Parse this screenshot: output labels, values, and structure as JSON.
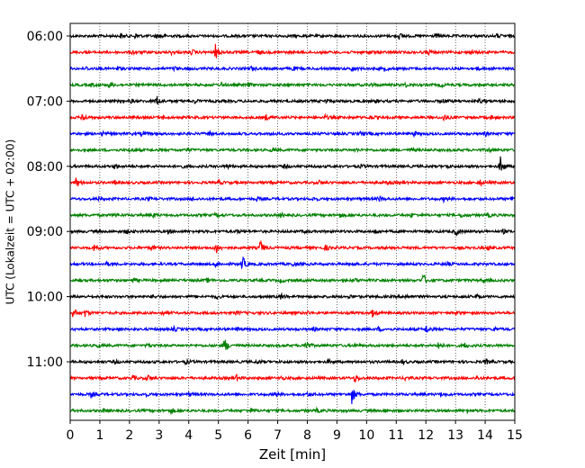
{
  "chart_data": {
    "type": "line",
    "title": "",
    "xlabel": "Zeit  [min]",
    "ylabel": "UTC (Lokalzeit = UTC + 02:00)",
    "xlim": [
      0,
      15
    ],
    "x_ticks": [
      0,
      1,
      2,
      3,
      4,
      5,
      6,
      7,
      8,
      9,
      10,
      11,
      12,
      13,
      14,
      15
    ],
    "x_tick_labels": [
      "0",
      "1",
      "2",
      "3",
      "4",
      "5",
      "6",
      "7",
      "8",
      "9",
      "10",
      "11",
      "12",
      "13",
      "14",
      "15"
    ],
    "y_tick_labels": [
      "06:00",
      "07:00",
      "08:00",
      "09:00",
      "10:00",
      "11:00"
    ],
    "y_tick_rows": [
      0,
      4,
      8,
      12,
      16,
      20
    ],
    "vertical_grid": true,
    "grid_style": "dotted",
    "color_cycle": [
      "#000000",
      "#ff0000",
      "#0000ff",
      "#008000"
    ],
    "row_minutes": 15,
    "traces": [
      {
        "start": "06:00",
        "color": "#000000",
        "events": [
          [
            1.7,
            2
          ],
          [
            2.2,
            3
          ],
          [
            2.9,
            2
          ],
          [
            3.1,
            2
          ],
          [
            11.1,
            3
          ],
          [
            12.3,
            2
          ],
          [
            14.4,
            2
          ]
        ]
      },
      {
        "start": "06:15",
        "color": "#ff0000",
        "events": [
          [
            2.1,
            2
          ],
          [
            3.4,
            2
          ],
          [
            4.1,
            3
          ],
          [
            4.9,
            8
          ],
          [
            6.3,
            2
          ],
          [
            10.1,
            2
          ],
          [
            12.1,
            2
          ],
          [
            13.5,
            2
          ]
        ]
      },
      {
        "start": "06:30",
        "color": "#0000ff",
        "events": [
          [
            0.5,
            2
          ],
          [
            1.6,
            2
          ],
          [
            3.5,
            2
          ],
          [
            6.1,
            2
          ],
          [
            7.5,
            2
          ],
          [
            9.5,
            4
          ],
          [
            10.6,
            2
          ],
          [
            13.7,
            2
          ]
        ]
      },
      {
        "start": "06:45",
        "color": "#008000",
        "events": [
          [
            0.7,
            2
          ],
          [
            1.3,
            3
          ],
          [
            5.1,
            2
          ],
          [
            6.0,
            2
          ],
          [
            10.1,
            2
          ],
          [
            11.3,
            2
          ],
          [
            12.5,
            2
          ]
        ]
      },
      {
        "start": "07:00",
        "color": "#000000",
        "events": [
          [
            2.0,
            2
          ],
          [
            2.9,
            7
          ],
          [
            4.2,
            2
          ],
          [
            8.6,
            2
          ],
          [
            10.3,
            2
          ],
          [
            12.6,
            2
          ],
          [
            13.8,
            2
          ]
        ]
      },
      {
        "start": "07:15",
        "color": "#ff0000",
        "events": [
          [
            0.4,
            5
          ],
          [
            3.1,
            2
          ],
          [
            6.6,
            3
          ],
          [
            8.6,
            2
          ],
          [
            10.1,
            2
          ],
          [
            12.6,
            4
          ],
          [
            14.2,
            2
          ]
        ]
      },
      {
        "start": "07:30",
        "color": "#0000ff",
        "events": [
          [
            1.1,
            2
          ],
          [
            2.4,
            2
          ],
          [
            4.7,
            2
          ],
          [
            6.8,
            2
          ],
          [
            9.8,
            2
          ],
          [
            11.6,
            2
          ],
          [
            14.0,
            2
          ]
        ]
      },
      {
        "start": "07:45",
        "color": "#008000",
        "events": [
          [
            2.0,
            2
          ],
          [
            3.9,
            2
          ],
          [
            6.8,
            2
          ],
          [
            9.6,
            2
          ],
          [
            11.5,
            2
          ],
          [
            14.1,
            2
          ]
        ]
      },
      {
        "start": "08:00",
        "color": "#000000",
        "events": [
          [
            1.5,
            3
          ],
          [
            3.7,
            2
          ],
          [
            5.3,
            2
          ],
          [
            7.2,
            2
          ],
          [
            9.8,
            2
          ],
          [
            12.7,
            2
          ],
          [
            14.5,
            12
          ]
        ]
      },
      {
        "start": "08:15",
        "color": "#ff0000",
        "events": [
          [
            0.2,
            6
          ],
          [
            1.5,
            2
          ],
          [
            5.0,
            2
          ],
          [
            8.4,
            2
          ],
          [
            10.7,
            2
          ],
          [
            13.8,
            4
          ]
        ]
      },
      {
        "start": "08:30",
        "color": "#0000ff",
        "events": [
          [
            0.9,
            2
          ],
          [
            2.6,
            2
          ],
          [
            4.1,
            2
          ],
          [
            6.3,
            2
          ],
          [
            8.2,
            2
          ],
          [
            10.4,
            4
          ],
          [
            12.6,
            2
          ],
          [
            14.9,
            3
          ]
        ]
      },
      {
        "start": "08:45",
        "color": "#008000",
        "events": [
          [
            1.5,
            2
          ],
          [
            2.8,
            2
          ],
          [
            4.9,
            2
          ],
          [
            7.1,
            2
          ],
          [
            9.1,
            2
          ],
          [
            11.5,
            2
          ],
          [
            13.2,
            2
          ],
          [
            14.1,
            2
          ]
        ]
      },
      {
        "start": "09:00",
        "color": "#000000",
        "events": [
          [
            1.9,
            2
          ],
          [
            3.3,
            2
          ],
          [
            5.6,
            2
          ],
          [
            7.9,
            2
          ],
          [
            10.3,
            2
          ],
          [
            13.0,
            5
          ],
          [
            14.6,
            2
          ]
        ]
      },
      {
        "start": "09:15",
        "color": "#ff0000",
        "events": [
          [
            0.8,
            4
          ],
          [
            2.7,
            3
          ],
          [
            4.9,
            8
          ],
          [
            6.4,
            9
          ],
          [
            8.6,
            3
          ],
          [
            10.9,
            2
          ],
          [
            14.1,
            2
          ]
        ]
      },
      {
        "start": "09:30",
        "color": "#0000ff",
        "events": [
          [
            1.2,
            2
          ],
          [
            4.9,
            3
          ],
          [
            5.8,
            9
          ],
          [
            7.5,
            2
          ],
          [
            9.5,
            2
          ],
          [
            12.7,
            2
          ]
        ]
      },
      {
        "start": "09:45",
        "color": "#008000",
        "events": [
          [
            2.1,
            2
          ],
          [
            4.6,
            2
          ],
          [
            7.1,
            2
          ],
          [
            9.6,
            2
          ],
          [
            11.9,
            8
          ],
          [
            13.9,
            2
          ]
        ]
      },
      {
        "start": "10:00",
        "color": "#000000",
        "events": [
          [
            2.8,
            2
          ],
          [
            4.9,
            2
          ],
          [
            7.1,
            3
          ],
          [
            9.4,
            2
          ],
          [
            11.3,
            2
          ],
          [
            13.7,
            2
          ]
        ]
      },
      {
        "start": "10:15",
        "color": "#ff0000",
        "events": [
          [
            0.1,
            6
          ],
          [
            0.5,
            4
          ],
          [
            3.1,
            2
          ],
          [
            5.6,
            2
          ],
          [
            8.0,
            2
          ],
          [
            10.2,
            4
          ],
          [
            13.0,
            2
          ]
        ]
      },
      {
        "start": "10:30",
        "color": "#0000ff",
        "events": [
          [
            1.6,
            2
          ],
          [
            3.5,
            2
          ],
          [
            5.6,
            2
          ],
          [
            8.2,
            2
          ],
          [
            10.4,
            2
          ],
          [
            12.0,
            5
          ],
          [
            14.3,
            2
          ]
        ]
      },
      {
        "start": "10:45",
        "color": "#008000",
        "events": [
          [
            0.9,
            2
          ],
          [
            2.6,
            2
          ],
          [
            5.2,
            9
          ],
          [
            7.9,
            8
          ],
          [
            9.6,
            2
          ],
          [
            12.4,
            6
          ],
          [
            13.3,
            3
          ]
        ]
      },
      {
        "start": "11:00",
        "color": "#000000",
        "events": [
          [
            1.5,
            2
          ],
          [
            3.9,
            2
          ],
          [
            6.3,
            2
          ],
          [
            8.7,
            2
          ],
          [
            11.2,
            2
          ],
          [
            14.0,
            3
          ]
        ]
      },
      {
        "start": "11:15",
        "color": "#ff0000",
        "events": [
          [
            2.1,
            3
          ],
          [
            2.6,
            4
          ],
          [
            5.6,
            3
          ],
          [
            7.1,
            2
          ],
          [
            9.6,
            5
          ],
          [
            11.3,
            2
          ],
          [
            13.7,
            2
          ]
        ]
      },
      {
        "start": "11:30",
        "color": "#0000ff",
        "events": [
          [
            0.7,
            3
          ],
          [
            2.5,
            2
          ],
          [
            4.0,
            2
          ],
          [
            6.9,
            2
          ],
          [
            8.0,
            2
          ],
          [
            9.5,
            10
          ],
          [
            12.5,
            2
          ]
        ]
      },
      {
        "start": "11:45",
        "color": "#008000",
        "events": [
          [
            1.1,
            2
          ],
          [
            3.4,
            3
          ],
          [
            6.1,
            2
          ],
          [
            8.3,
            2
          ],
          [
            10.6,
            2
          ],
          [
            13.4,
            2
          ]
        ]
      }
    ]
  }
}
